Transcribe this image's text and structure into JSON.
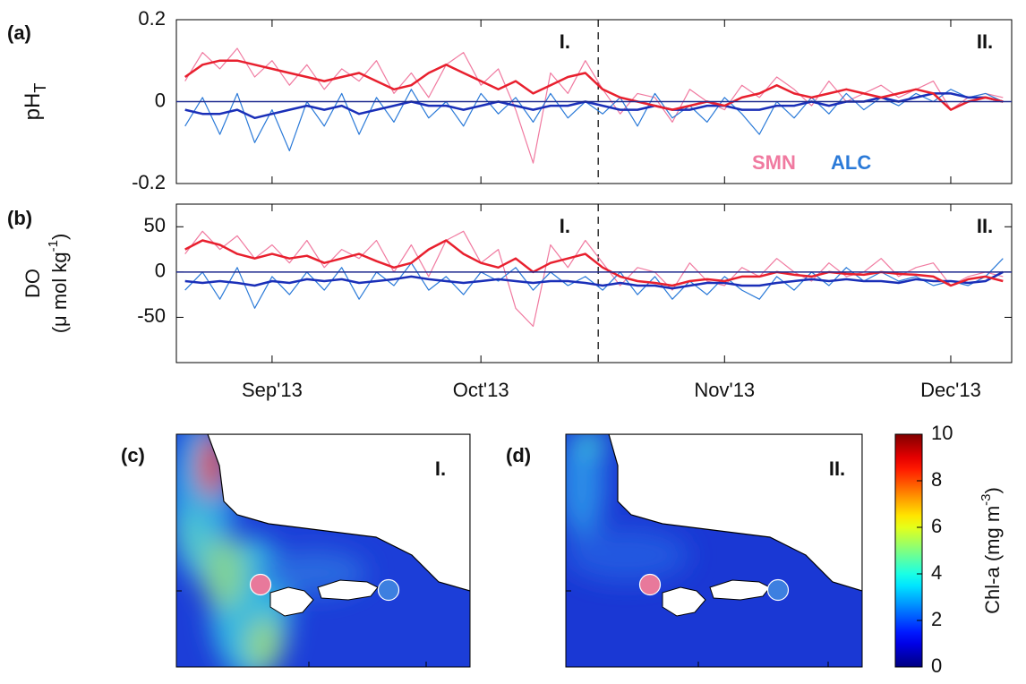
{
  "chart_data": [
    {
      "type": "line",
      "label": "(a)",
      "ylabel": "pH",
      "ylabel_sub": "T",
      "ylim": [
        -0.2,
        0.2
      ],
      "yticks": [
        -0.2,
        0,
        0.2
      ],
      "zero_line": true,
      "annotations": [
        "I.",
        "II."
      ],
      "legend": "lower right",
      "series": [
        {
          "name": "SMN",
          "color": "#f07aa0",
          "width": 1.2,
          "values": [
            0.05,
            0.12,
            0.08,
            0.13,
            0.06,
            0.1,
            0.04,
            0.09,
            0.03,
            0.08,
            0.05,
            0.1,
            0.02,
            0.07,
            0.01,
            0.09,
            0.12,
            0.04,
            0.08,
            -0.02,
            -0.15,
            0.07,
            0.02,
            0.1,
            0.03,
            -0.03,
            0.02,
            0.01,
            -0.05,
            0.03,
            0,
            -0.02,
            0.04,
            0.01,
            0.06,
            0.03,
            -0.01,
            0.05,
            0,
            0.02,
            0.04,
            0.01,
            0.03,
            0.05,
            -0.02,
            0.01,
            0.02,
            0.01
          ]
        },
        {
          "name": "ALC",
          "color": "#2b7ad8",
          "width": 1.2,
          "values": [
            -0.06,
            0.01,
            -0.08,
            0.02,
            -0.1,
            -0.02,
            -0.12,
            0,
            -0.06,
            0.02,
            -0.08,
            0.01,
            -0.05,
            0.03,
            -0.04,
            0,
            -0.06,
            0.02,
            -0.03,
            0.01,
            -0.05,
            0.02,
            -0.04,
            0,
            -0.03,
            0.01,
            -0.06,
            0.02,
            -0.04,
            -0.01,
            -0.05,
            0.01,
            -0.03,
            -0.08,
            0,
            -0.04,
            0.01,
            -0.03,
            0.02,
            -0.02,
            0.01,
            -0.01,
            0.02,
            0,
            0.03,
            0.01,
            0.02,
            0
          ]
        },
        {
          "color": "#1a2fb8",
          "width": 2.5,
          "values": [
            -0.02,
            -0.03,
            -0.03,
            -0.02,
            -0.04,
            -0.03,
            -0.02,
            -0.01,
            -0.02,
            -0.01,
            -0.03,
            -0.02,
            -0.01,
            0,
            -0.01,
            -0.01,
            -0.02,
            -0.01,
            0,
            -0.01,
            -0.02,
            -0.01,
            -0.01,
            0,
            -0.01,
            -0.02,
            -0.02,
            -0.01,
            -0.02,
            -0.02,
            -0.01,
            -0.01,
            -0.02,
            -0.02,
            -0.01,
            -0.01,
            0,
            -0.01,
            0,
            0,
            0.01,
            0,
            0.01,
            0.02,
            0.02,
            0.01,
            0.01,
            0
          ]
        },
        {
          "color": "#e8202e",
          "width": 2.5,
          "values": [
            0.06,
            0.09,
            0.1,
            0.1,
            0.09,
            0.08,
            0.07,
            0.06,
            0.05,
            0.06,
            0.07,
            0.05,
            0.03,
            0.04,
            0.07,
            0.09,
            0.07,
            0.05,
            0.03,
            0.05,
            0.02,
            0.04,
            0.06,
            0.07,
            0.03,
            0.01,
            0,
            -0.01,
            -0.02,
            -0.01,
            0,
            -0.01,
            0.01,
            0.02,
            0.04,
            0.02,
            0.01,
            0.02,
            0.03,
            0.02,
            0.01,
            0.02,
            0.03,
            0.02,
            -0.02,
            0,
            0.01,
            0
          ]
        }
      ]
    },
    {
      "type": "line",
      "label": "(b)",
      "ylabel": "DO",
      "ylabel_unit": [
        "(μ mol kg",
        "-1",
        ")"
      ],
      "ylim": [
        -100,
        75
      ],
      "yticks": [
        -50,
        0,
        50
      ],
      "zero_line": true,
      "annotations": [
        "I.",
        "II."
      ],
      "categories": [
        null,
        null,
        null,
        null,
        null,
        "Sep'13",
        null,
        null,
        null,
        null,
        null,
        null,
        null,
        null,
        null,
        null,
        null,
        "Oct'13",
        null,
        null,
        null,
        null,
        null,
        null,
        null,
        null,
        null,
        null,
        null,
        null,
        null,
        "Nov'13",
        null,
        null,
        null,
        null,
        null,
        null,
        null,
        null,
        null,
        null,
        null,
        null,
        "Dec'13",
        null,
        null,
        null
      ],
      "series": [
        {
          "color": "#f07aa0",
          "width": 1.2,
          "values": [
            20,
            45,
            25,
            40,
            15,
            30,
            10,
            35,
            5,
            25,
            15,
            35,
            0,
            30,
            -5,
            35,
            45,
            10,
            25,
            -40,
            -60,
            30,
            5,
            35,
            10,
            -15,
            5,
            0,
            -20,
            10,
            -10,
            -15,
            5,
            -5,
            15,
            0,
            -10,
            10,
            -5,
            0,
            15,
            -5,
            5,
            10,
            -15,
            -5,
            0,
            -5
          ]
        },
        {
          "color": "#2b7ad8",
          "width": 1.2,
          "values": [
            -20,
            0,
            -30,
            5,
            -40,
            -5,
            -25,
            0,
            -20,
            5,
            -30,
            0,
            -15,
            10,
            -20,
            -5,
            -25,
            0,
            -10,
            5,
            -20,
            0,
            -15,
            -5,
            -20,
            0,
            -25,
            -5,
            -30,
            -10,
            -25,
            -5,
            -20,
            -30,
            -5,
            -20,
            0,
            -15,
            5,
            -10,
            0,
            -10,
            -5,
            -15,
            -10,
            -15,
            -5,
            15
          ]
        },
        {
          "color": "#1a2fb8",
          "width": 2.5,
          "values": [
            -10,
            -12,
            -10,
            -12,
            -15,
            -10,
            -12,
            -8,
            -10,
            -8,
            -12,
            -10,
            -8,
            -5,
            -8,
            -10,
            -12,
            -10,
            -8,
            -10,
            -12,
            -10,
            -10,
            -12,
            -15,
            -12,
            -15,
            -15,
            -18,
            -15,
            -12,
            -12,
            -15,
            -15,
            -12,
            -10,
            -8,
            -10,
            -8,
            -10,
            -10,
            -12,
            -8,
            -10,
            -10,
            -12,
            -10,
            0
          ]
        },
        {
          "color": "#e8202e",
          "width": 2.5,
          "values": [
            25,
            35,
            30,
            20,
            15,
            20,
            15,
            18,
            10,
            15,
            20,
            12,
            5,
            10,
            25,
            35,
            20,
            10,
            5,
            15,
            0,
            10,
            15,
            20,
            5,
            -5,
            -10,
            -12,
            -15,
            -10,
            -8,
            -10,
            -5,
            -5,
            0,
            -3,
            -5,
            0,
            -2,
            -3,
            0,
            -2,
            -3,
            -5,
            -15,
            -8,
            -5,
            -10
          ]
        }
      ]
    },
    {
      "type": "map",
      "label": "(c)",
      "annotation": "I.",
      "site_colors": [
        "#e8799b",
        "#3d7fe0"
      ]
    },
    {
      "type": "map",
      "label": "(d)",
      "annotation": "II.",
      "site_colors": [
        "#e8799b",
        "#3d7fe0"
      ]
    },
    {
      "type": "colorbar",
      "colormap": "jet",
      "ylim": [
        0,
        10
      ],
      "yticks": [
        0,
        2,
        4,
        6,
        8,
        10
      ],
      "ylabel": [
        "Chl-a (mg m",
        "-3",
        ")"
      ]
    }
  ]
}
